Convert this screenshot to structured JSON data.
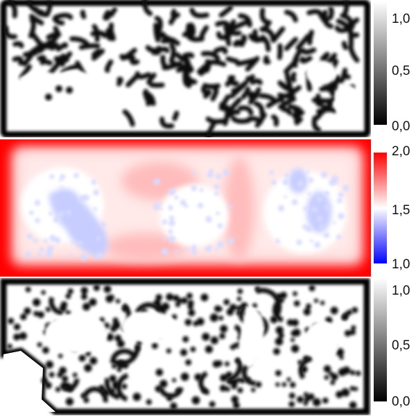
{
  "panels": [
    {
      "colorbar": {
        "scheme": "grayscale",
        "colors": [
          "#000000",
          "#ffffff"
        ],
        "ticks": [
          "0,0",
          "0,5",
          "1,0"
        ],
        "range": [
          0.0,
          1.0
        ]
      }
    },
    {
      "colorbar": {
        "scheme": "blue-white-red",
        "colors": [
          "#0000ff",
          "#ffffff",
          "#ff0000"
        ],
        "ticks": [
          "1,0",
          "1,5",
          "2,0"
        ],
        "range": [
          1.0,
          2.0
        ]
      }
    },
    {
      "colorbar": {
        "scheme": "grayscale",
        "colors": [
          "#000000",
          "#ffffff"
        ],
        "ticks": [
          "0,0",
          "0,5",
          "1,0"
        ],
        "range": [
          0.0,
          1.0
        ]
      }
    }
  ]
}
